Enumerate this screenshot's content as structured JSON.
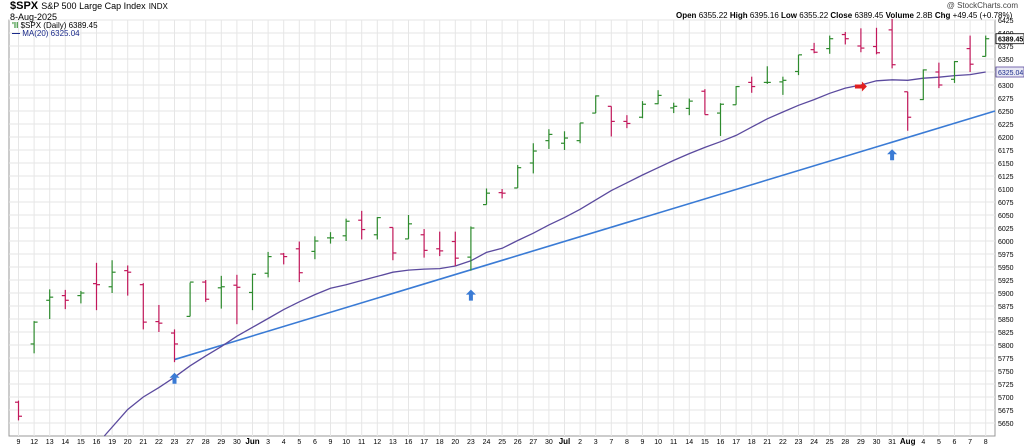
{
  "header": {
    "symbol": "$SPX",
    "name": "S&P 500 Large Cap Index",
    "exchange": "INDX",
    "date": "8-Aug-2025",
    "watermark": "@ StockCharts.com",
    "legend_price": "$SPX (Daily) 6389.45",
    "legend_ma": "MA(20) 6325.04",
    "open_label": "Open",
    "open": "6355.22",
    "high_label": "High",
    "high": "6395.16",
    "low_label": "Low",
    "low": "6355.22",
    "close_label": "Close",
    "close": "6389.45",
    "volume_label": "Volume",
    "volume": "2.8B",
    "chg_label": "Chg",
    "chg": "+49.45 (+0.78%)"
  },
  "colors": {
    "up": "#2e8b2e",
    "down": "#c2185b",
    "ma": "#5b4a9e",
    "trendline": "#3a7bd5",
    "arrow_blue": "#3a7bd5",
    "arrow_red": "#e02020",
    "grid": "#e6e6e6",
    "ma_tag_bg": "#e8e8f4"
  },
  "chart_data": {
    "type": "ohlc",
    "ylim": [
      5625,
      6425
    ],
    "yticks": [
      5650,
      5675,
      5700,
      5725,
      5750,
      5775,
      5800,
      5825,
      5850,
      5875,
      5900,
      5925,
      5950,
      5975,
      6000,
      6025,
      6050,
      6075,
      6100,
      6125,
      6150,
      6175,
      6200,
      6225,
      6250,
      6275,
      6300,
      6325,
      6350,
      6375,
      6400,
      6425
    ],
    "price_tag": "6389.45",
    "ma_tag": "6325.04",
    "xticks": [
      {
        "i": 0,
        "label": "9"
      },
      {
        "i": 1,
        "label": "12"
      },
      {
        "i": 2,
        "label": "13"
      },
      {
        "i": 3,
        "label": "14"
      },
      {
        "i": 4,
        "label": "15"
      },
      {
        "i": 5,
        "label": "16"
      },
      {
        "i": 6,
        "label": "19"
      },
      {
        "i": 7,
        "label": "20"
      },
      {
        "i": 8,
        "label": "21"
      },
      {
        "i": 9,
        "label": "22"
      },
      {
        "i": 10,
        "label": "23"
      },
      {
        "i": 11,
        "label": "27"
      },
      {
        "i": 12,
        "label": "28"
      },
      {
        "i": 13,
        "label": "29"
      },
      {
        "i": 14,
        "label": "30"
      },
      {
        "i": 15,
        "label": "Jun"
      },
      {
        "i": 16,
        "label": "3"
      },
      {
        "i": 17,
        "label": "4"
      },
      {
        "i": 18,
        "label": "5"
      },
      {
        "i": 19,
        "label": "6"
      },
      {
        "i": 20,
        "label": "9"
      },
      {
        "i": 21,
        "label": "10"
      },
      {
        "i": 22,
        "label": "11"
      },
      {
        "i": 23,
        "label": "12"
      },
      {
        "i": 24,
        "label": "13"
      },
      {
        "i": 25,
        "label": "16"
      },
      {
        "i": 26,
        "label": "17"
      },
      {
        "i": 27,
        "label": "18"
      },
      {
        "i": 28,
        "label": "20"
      },
      {
        "i": 29,
        "label": "23"
      },
      {
        "i": 30,
        "label": "24"
      },
      {
        "i": 31,
        "label": "25"
      },
      {
        "i": 32,
        "label": "26"
      },
      {
        "i": 33,
        "label": "27"
      },
      {
        "i": 34,
        "label": "30"
      },
      {
        "i": 35,
        "label": "Jul"
      },
      {
        "i": 36,
        "label": "2"
      },
      {
        "i": 37,
        "label": "3"
      },
      {
        "i": 38,
        "label": "7"
      },
      {
        "i": 39,
        "label": "8"
      },
      {
        "i": 40,
        "label": "9"
      },
      {
        "i": 41,
        "label": "10"
      },
      {
        "i": 42,
        "label": "11"
      },
      {
        "i": 43,
        "label": "14"
      },
      {
        "i": 44,
        "label": "15"
      },
      {
        "i": 45,
        "label": "16"
      },
      {
        "i": 46,
        "label": "17"
      },
      {
        "i": 47,
        "label": "18"
      },
      {
        "i": 48,
        "label": "21"
      },
      {
        "i": 49,
        "label": "22"
      },
      {
        "i": 50,
        "label": "23"
      },
      {
        "i": 51,
        "label": "24"
      },
      {
        "i": 52,
        "label": "25"
      },
      {
        "i": 53,
        "label": "28"
      },
      {
        "i": 54,
        "label": "29"
      },
      {
        "i": 55,
        "label": "30"
      },
      {
        "i": 56,
        "label": "31"
      },
      {
        "i": 57,
        "label": "Aug"
      },
      {
        "i": 58,
        "label": "4"
      },
      {
        "i": 59,
        "label": "5"
      },
      {
        "i": 60,
        "label": "6"
      },
      {
        "i": 61,
        "label": "7"
      },
      {
        "i": 62,
        "label": "8"
      }
    ],
    "bars": [
      {
        "o": 5690,
        "h": 5693,
        "l": 5655,
        "c": 5663
      },
      {
        "o": 5802,
        "h": 5846,
        "l": 5784,
        "c": 5844
      },
      {
        "o": 5886,
        "h": 5907,
        "l": 5850,
        "c": 5892
      },
      {
        "o": 5895,
        "h": 5906,
        "l": 5869,
        "c": 5886
      },
      {
        "o": 5895,
        "h": 5904,
        "l": 5880,
        "c": 5900
      },
      {
        "o": 5918,
        "h": 5958,
        "l": 5867,
        "c": 5916
      },
      {
        "o": 5912,
        "h": 5963,
        "l": 5900,
        "c": 5940
      },
      {
        "o": 5943,
        "h": 5953,
        "l": 5895,
        "c": 5940
      },
      {
        "o": 5916,
        "h": 5919,
        "l": 5830,
        "c": 5844
      },
      {
        "o": 5845,
        "h": 5877,
        "l": 5825,
        "c": 5842
      },
      {
        "o": 5823,
        "h": 5830,
        "l": 5767,
        "c": 5802
      },
      {
        "o": 5855,
        "h": 5920,
        "l": 5855,
        "c": 5921
      },
      {
        "o": 5921,
        "h": 5925,
        "l": 5883,
        "c": 5888
      },
      {
        "o": 5910,
        "h": 5933,
        "l": 5870,
        "c": 5912
      },
      {
        "o": 5915,
        "h": 5935,
        "l": 5840,
        "c": 5911
      },
      {
        "o": 5901,
        "h": 5937,
        "l": 5867,
        "c": 5936
      },
      {
        "o": 5938,
        "h": 5979,
        "l": 5930,
        "c": 5970
      },
      {
        "o": 5975,
        "h": 5977,
        "l": 5955,
        "c": 5970
      },
      {
        "o": 5985,
        "h": 5999,
        "l": 5921,
        "c": 5939
      },
      {
        "o": 5980,
        "h": 6009,
        "l": 5965,
        "c": 6000
      },
      {
        "o": 6006,
        "h": 6017,
        "l": 5995,
        "c": 6006
      },
      {
        "o": 6010,
        "h": 6043,
        "l": 6000,
        "c": 6038
      },
      {
        "o": 6040,
        "h": 6058,
        "l": 6003,
        "c": 6022
      },
      {
        "o": 6012,
        "h": 6046,
        "l": 6003,
        "c": 6045
      },
      {
        "o": 6026,
        "h": 6026,
        "l": 5963,
        "c": 5977
      },
      {
        "o": 6004,
        "h": 6050,
        "l": 6004,
        "c": 6033
      },
      {
        "o": 6012,
        "h": 6023,
        "l": 5968,
        "c": 5982
      },
      {
        "o": 5985,
        "h": 6018,
        "l": 5971,
        "c": 5981
      },
      {
        "o": 5999,
        "h": 6018,
        "l": 5952,
        "c": 5967
      },
      {
        "o": 5969,
        "h": 6028,
        "l": 5943,
        "c": 6025
      },
      {
        "o": 6070,
        "h": 6101,
        "l": 6070,
        "c": 6092
      },
      {
        "o": 6093,
        "h": 6100,
        "l": 6082,
        "c": 6092
      },
      {
        "o": 6102,
        "h": 6146,
        "l": 6102,
        "c": 6141
      },
      {
        "o": 6150,
        "h": 6188,
        "l": 6130,
        "c": 6173
      },
      {
        "o": 6193,
        "h": 6215,
        "l": 6177,
        "c": 6205
      },
      {
        "o": 6188,
        "h": 6211,
        "l": 6175,
        "c": 6198
      },
      {
        "o": 6193,
        "h": 6227,
        "l": 6188,
        "c": 6227
      },
      {
        "o": 6246,
        "h": 6280,
        "l": 6246,
        "c": 6279
      },
      {
        "o": 6259,
        "h": 6259,
        "l": 6201,
        "c": 6230
      },
      {
        "o": 6230,
        "h": 6242,
        "l": 6217,
        "c": 6226
      },
      {
        "o": 6238,
        "h": 6269,
        "l": 6236,
        "c": 6263
      },
      {
        "o": 6264,
        "h": 6290,
        "l": 6263,
        "c": 6280
      },
      {
        "o": 6256,
        "h": 6266,
        "l": 6246,
        "c": 6259
      },
      {
        "o": 6255,
        "h": 6274,
        "l": 6242,
        "c": 6269
      },
      {
        "o": 6288,
        "h": 6292,
        "l": 6243,
        "c": 6243
      },
      {
        "o": 6246,
        "h": 6265,
        "l": 6202,
        "c": 6263
      },
      {
        "o": 6262,
        "h": 6298,
        "l": 6262,
        "c": 6297
      },
      {
        "o": 6305,
        "h": 6316,
        "l": 6285,
        "c": 6297
      },
      {
        "o": 6305,
        "h": 6336,
        "l": 6302,
        "c": 6305
      },
      {
        "o": 6306,
        "h": 6316,
        "l": 6281,
        "c": 6309
      },
      {
        "o": 6326,
        "h": 6358,
        "l": 6319,
        "c": 6358
      },
      {
        "o": 6368,
        "h": 6381,
        "l": 6361,
        "c": 6363
      },
      {
        "o": 6370,
        "h": 6395,
        "l": 6360,
        "c": 6389
      },
      {
        "o": 6397,
        "h": 6402,
        "l": 6378,
        "c": 6389
      },
      {
        "o": 6375,
        "h": 6409,
        "l": 6363,
        "c": 6371
      },
      {
        "o": 6374,
        "h": 6410,
        "l": 6359,
        "c": 6362
      },
      {
        "o": 6406,
        "h": 6427,
        "l": 6332,
        "c": 6339
      },
      {
        "o": 6287,
        "h": 6287,
        "l": 6212,
        "c": 6238
      },
      {
        "o": 6272,
        "h": 6330,
        "l": 6271,
        "c": 6329
      },
      {
        "o": 6325,
        "h": 6343,
        "l": 6294,
        "c": 6300
      },
      {
        "o": 6311,
        "h": 6346,
        "l": 6304,
        "c": 6345
      },
      {
        "o": 6370,
        "h": 6395,
        "l": 6325,
        "c": 6340
      },
      {
        "o": 6355,
        "h": 6395,
        "l": 6355,
        "c": 6389
      }
    ],
    "ma20": [
      {
        "i": 5.5,
        "v": 5625
      },
      {
        "i": 7,
        "v": 5676
      },
      {
        "i": 8,
        "v": 5700
      },
      {
        "i": 9,
        "v": 5718
      },
      {
        "i": 10,
        "v": 5738
      },
      {
        "i": 11,
        "v": 5760
      },
      {
        "i": 12,
        "v": 5779
      },
      {
        "i": 13,
        "v": 5797
      },
      {
        "i": 14,
        "v": 5817
      },
      {
        "i": 15,
        "v": 5834
      },
      {
        "i": 16,
        "v": 5851
      },
      {
        "i": 17,
        "v": 5868
      },
      {
        "i": 18,
        "v": 5883
      },
      {
        "i": 19,
        "v": 5897
      },
      {
        "i": 20,
        "v": 5909
      },
      {
        "i": 21,
        "v": 5916
      },
      {
        "i": 22,
        "v": 5924
      },
      {
        "i": 23,
        "v": 5932
      },
      {
        "i": 24,
        "v": 5940
      },
      {
        "i": 25,
        "v": 5944
      },
      {
        "i": 26,
        "v": 5946
      },
      {
        "i": 27,
        "v": 5947
      },
      {
        "i": 28,
        "v": 5952
      },
      {
        "i": 29,
        "v": 5962
      },
      {
        "i": 30,
        "v": 5978
      },
      {
        "i": 31,
        "v": 5986
      },
      {
        "i": 32,
        "v": 6001
      },
      {
        "i": 33,
        "v": 6015
      },
      {
        "i": 34,
        "v": 6031
      },
      {
        "i": 35,
        "v": 6045
      },
      {
        "i": 36,
        "v": 6061
      },
      {
        "i": 37,
        "v": 6079
      },
      {
        "i": 38,
        "v": 6097
      },
      {
        "i": 39,
        "v": 6112
      },
      {
        "i": 40,
        "v": 6127
      },
      {
        "i": 41,
        "v": 6141
      },
      {
        "i": 42,
        "v": 6155
      },
      {
        "i": 43,
        "v": 6168
      },
      {
        "i": 44,
        "v": 6180
      },
      {
        "i": 45,
        "v": 6191
      },
      {
        "i": 46,
        "v": 6203
      },
      {
        "i": 47,
        "v": 6219
      },
      {
        "i": 48,
        "v": 6235
      },
      {
        "i": 49,
        "v": 6248
      },
      {
        "i": 50,
        "v": 6261
      },
      {
        "i": 51,
        "v": 6272
      },
      {
        "i": 52,
        "v": 6284
      },
      {
        "i": 53,
        "v": 6294
      },
      {
        "i": 54,
        "v": 6300
      },
      {
        "i": 55,
        "v": 6308
      },
      {
        "i": 56,
        "v": 6310
      },
      {
        "i": 57,
        "v": 6309
      },
      {
        "i": 58,
        "v": 6313
      },
      {
        "i": 59,
        "v": 6315
      },
      {
        "i": 60,
        "v": 6318
      },
      {
        "i": 61,
        "v": 6320
      },
      {
        "i": 62,
        "v": 6325
      }
    ],
    "trendline": {
      "start": {
        "i": 10,
        "v": 5772
      },
      "end": {
        "i": 63.8,
        "v": 6250
      }
    },
    "arrows": [
      {
        "i": 10,
        "v": 5735,
        "dir": "up",
        "color": "blue"
      },
      {
        "i": 29,
        "v": 5895,
        "dir": "up",
        "color": "blue"
      },
      {
        "i": 56,
        "v": 6165,
        "dir": "up",
        "color": "blue"
      },
      {
        "i": 54,
        "v": 6297,
        "dir": "right",
        "color": "red"
      }
    ]
  }
}
